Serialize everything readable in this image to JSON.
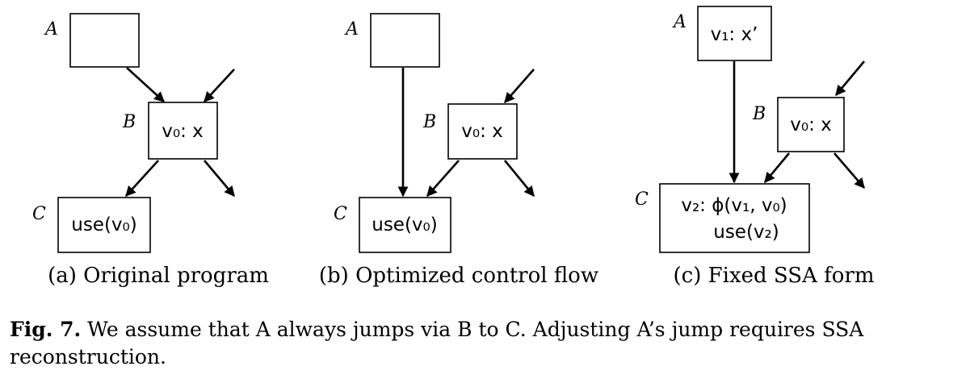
{
  "panels": [
    {
      "caption": "(a) Original program",
      "node_a_label": "A",
      "node_b_label": "B",
      "node_b_code": "v₀: x",
      "node_c_label": "C",
      "node_c_code": "use(v₀)"
    },
    {
      "caption": "(b) Optimized control flow",
      "node_a_label": "A",
      "node_b_label": "B",
      "node_b_code": "v₀: x",
      "node_c_label": "C",
      "node_c_code": "use(v₀)"
    },
    {
      "caption": "(c) Fixed SSA form",
      "node_a_label": "A",
      "node_a_code": "v₁: x’",
      "node_b_label": "B",
      "node_b_code": "v₀: x",
      "node_c_label": "C",
      "node_c_code_line1": "v₂: ϕ(v₁, v₀)",
      "node_c_code_line2": "use(v₂)"
    }
  ],
  "figure_caption": {
    "label": "Fig. 7.",
    "text": " We assume that A always jumps via B to C. Adjusting A’s jump requires SSA reconstruction."
  }
}
